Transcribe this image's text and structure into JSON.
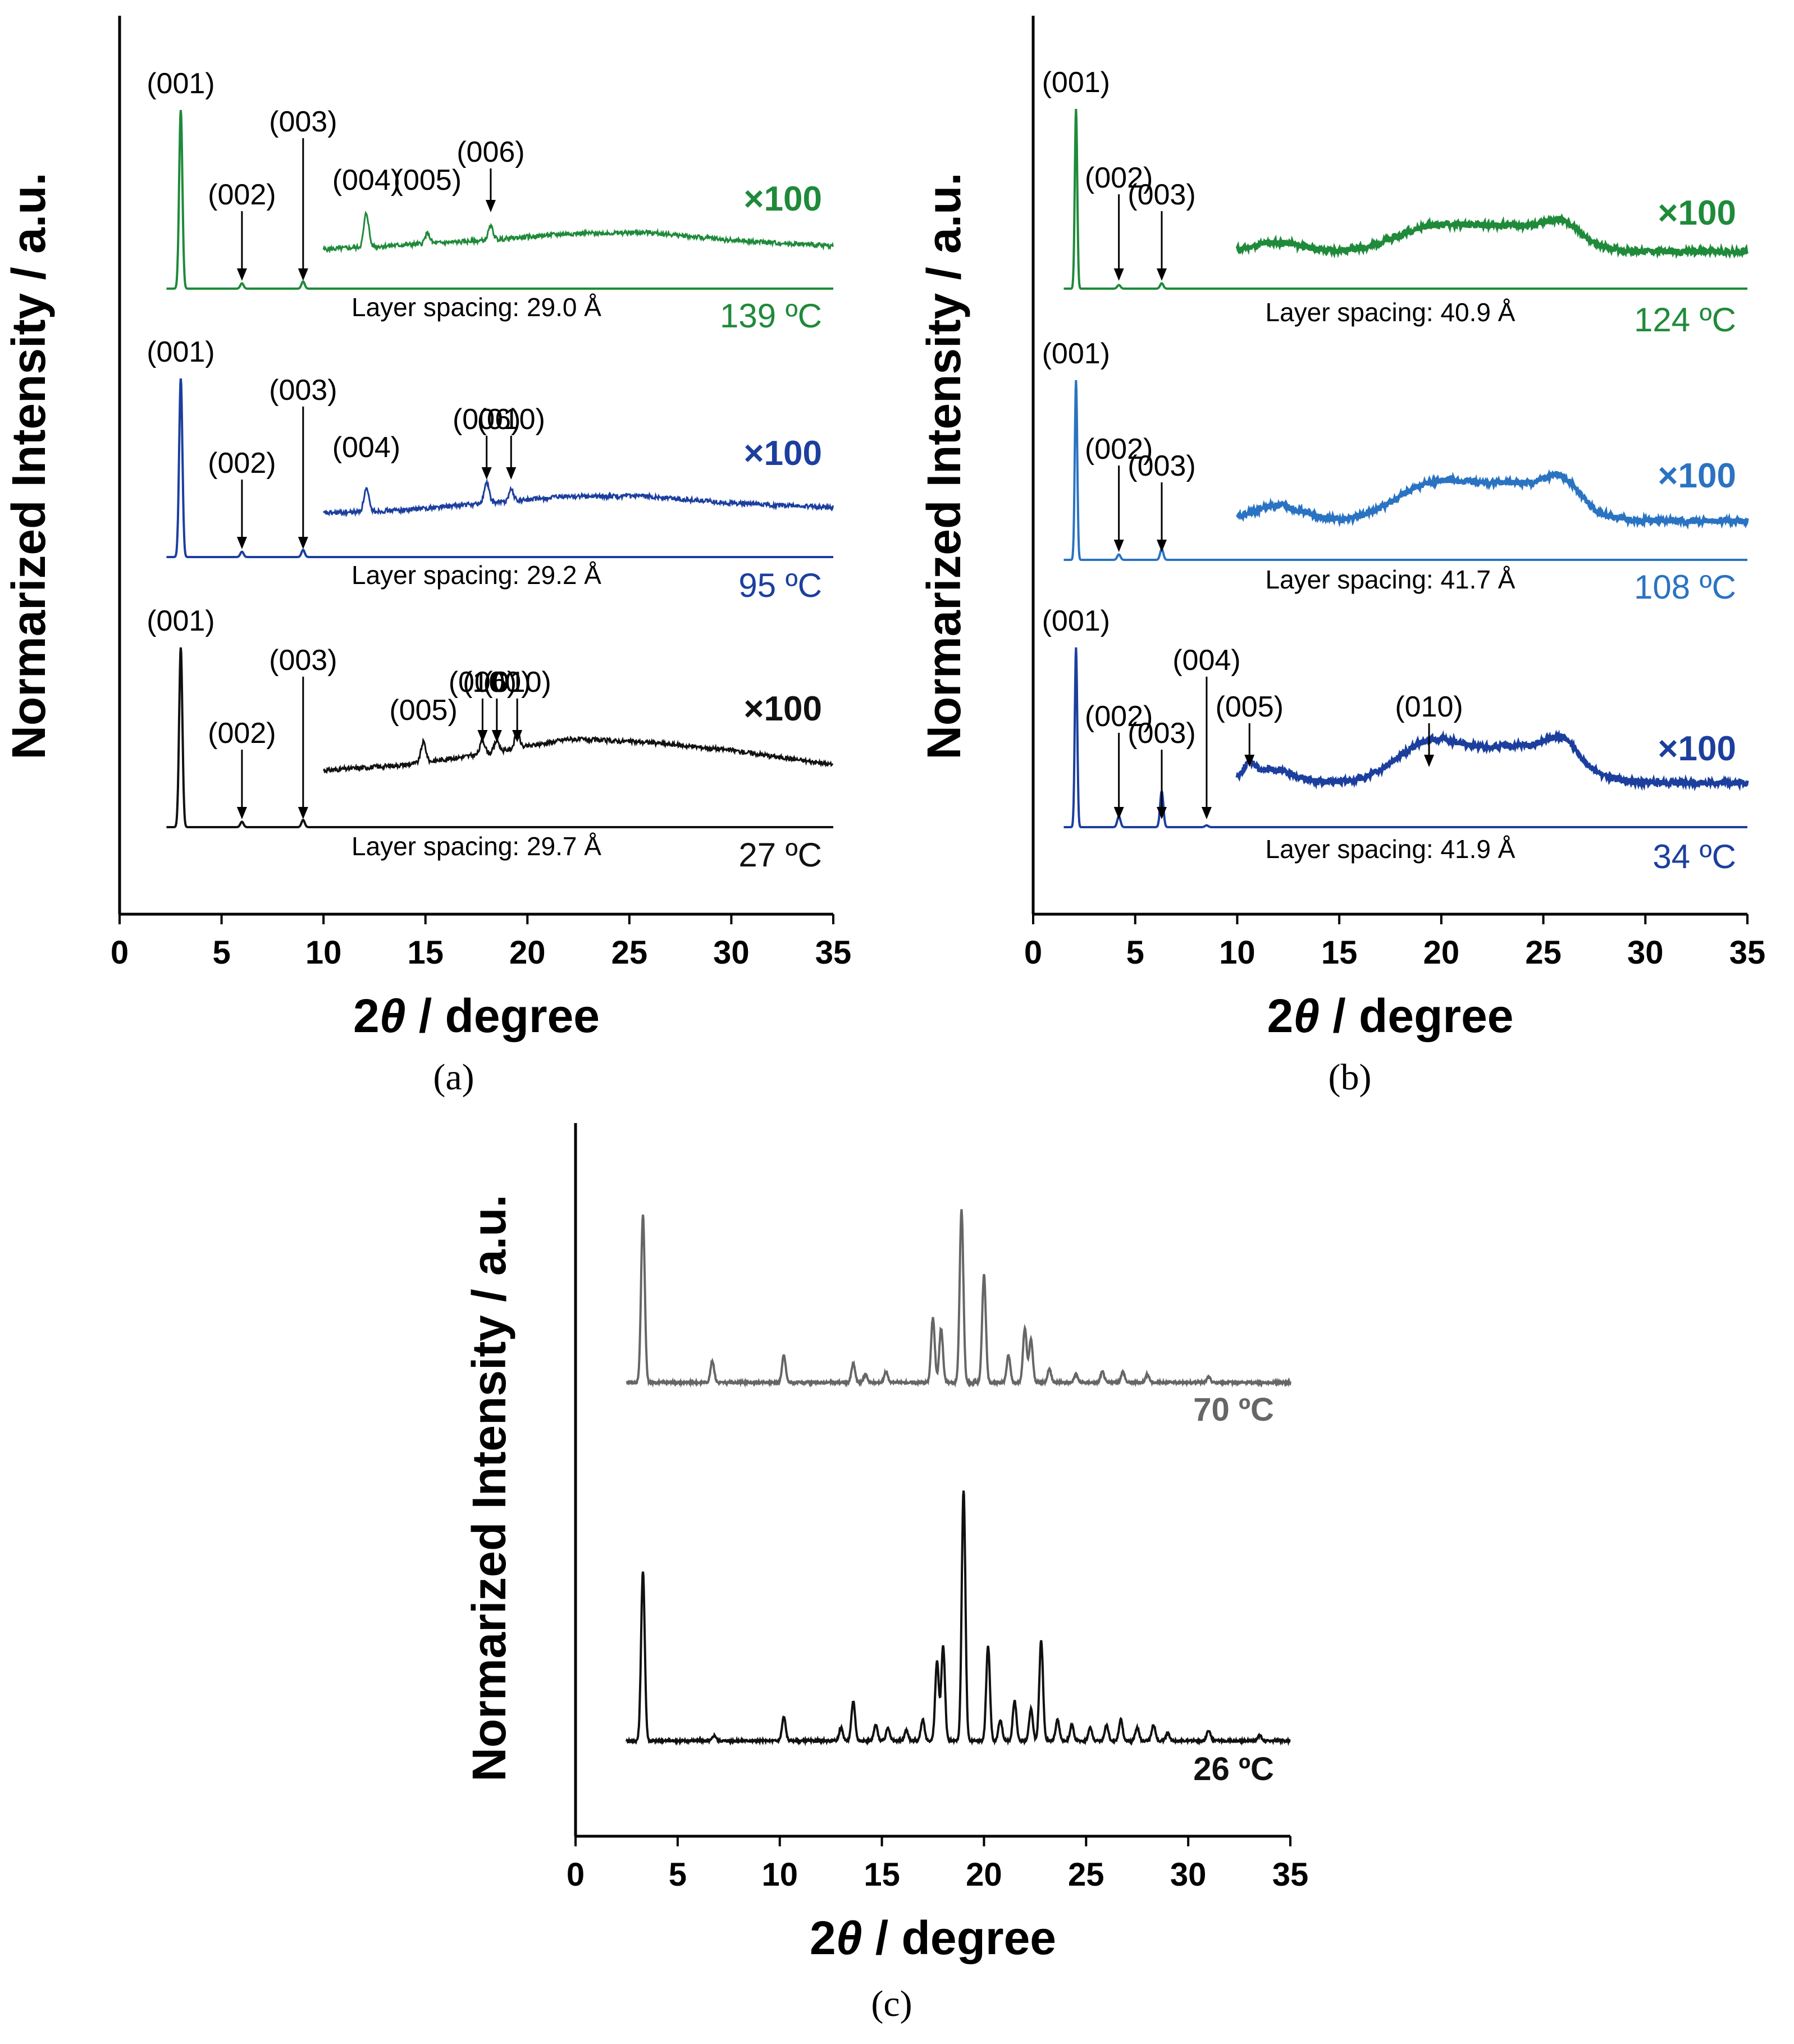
{
  "chart_data": [
    {
      "panel": "a",
      "type": "line",
      "caption": "(a)",
      "xlabel": "2θ / degree",
      "ylabel": "Normarized Intensity / a.u.",
      "xlim": [
        0,
        35
      ],
      "xticks": [
        "0",
        "5",
        "10",
        "15",
        "20",
        "25",
        "30",
        "35"
      ],
      "series": [
        {
          "temperature": "139 ºC",
          "color": "#1f8a3a",
          "spacing": "Layer spacing: 29.0 Å",
          "multiplier": "×100",
          "low": [
            [
              3.0,
              1.0
            ],
            [
              6.0,
              0.03
            ],
            [
              9.0,
              0.04
            ]
          ],
          "high": {
            "baseline": [
              [
                10,
                0.12
              ],
              [
                14,
                0.16
              ],
              [
                18,
                0.2
              ],
              [
                22,
                0.26
              ],
              [
                26,
                0.27
              ],
              [
                30,
                0.2
              ],
              [
                35,
                0.15
              ]
            ],
            "peaks": [
              [
                12.1,
                0.3
              ],
              [
                15.1,
                0.09
              ],
              [
                18.2,
                0.12
              ]
            ]
          },
          "labels": [
            {
              "text": "(001)",
              "x": 3.0,
              "arrow": false
            },
            {
              "text": "(002)",
              "x": 6.0,
              "arrow": true
            },
            {
              "text": "(003)",
              "x": 9.0,
              "arrow": true
            },
            {
              "text": "(004)",
              "x": 12.1,
              "arrow": false
            },
            {
              "text": "(005)",
              "x": 15.1,
              "arrow": false
            },
            {
              "text": "(006)",
              "x": 18.2,
              "arrow": true
            }
          ]
        },
        {
          "temperature": "95 ºC",
          "color": "#1c3f9e",
          "spacing": "Layer spacing: 29.2 Å",
          "multiplier": "×100",
          "low": [
            [
              3.0,
              1.0
            ],
            [
              6.0,
              0.03
            ],
            [
              9.0,
              0.04
            ]
          ],
          "high": {
            "baseline": [
              [
                10,
                0.15
              ],
              [
                14,
                0.18
              ],
              [
                18,
                0.24
              ],
              [
                22,
                0.3
              ],
              [
                26,
                0.3
              ],
              [
                30,
                0.24
              ],
              [
                35,
                0.2
              ]
            ],
            "peaks": [
              [
                12.1,
                0.2
              ],
              [
                18.0,
                0.18
              ],
              [
                19.2,
                0.1
              ]
            ]
          },
          "labels": [
            {
              "text": "(001)",
              "x": 3.0,
              "arrow": false
            },
            {
              "text": "(002)",
              "x": 6.0,
              "arrow": true
            },
            {
              "text": "(003)",
              "x": 9.0,
              "arrow": true
            },
            {
              "text": "(004)",
              "x": 12.1,
              "arrow": false
            },
            {
              "text": "(006)",
              "x": 18.0,
              "arrow": true
            },
            {
              "text": "(010)",
              "x": 19.2,
              "arrow": true
            }
          ]
        },
        {
          "temperature": "27 ºC",
          "color": "#111111",
          "spacing": "Layer spacing: 29.7 Å",
          "multiplier": "×100",
          "low": [
            [
              3.0,
              1.0
            ],
            [
              6.0,
              0.03
            ],
            [
              9.0,
              0.04
            ]
          ],
          "high": {
            "baseline": [
              [
                10,
                0.2
              ],
              [
                14,
                0.25
              ],
              [
                18,
                0.35
              ],
              [
                22,
                0.48
              ],
              [
                26,
                0.45
              ],
              [
                30,
                0.38
              ],
              [
                35,
                0.25
              ]
            ],
            "peaks": [
              [
                14.9,
                0.18
              ],
              [
                17.8,
                0.12
              ],
              [
                18.5,
                0.1
              ],
              [
                19.5,
                0.14
              ]
            ]
          },
          "labels": [
            {
              "text": "(001)",
              "x": 3.0,
              "arrow": false
            },
            {
              "text": "(002)",
              "x": 6.0,
              "arrow": true
            },
            {
              "text": "(003)",
              "x": 9.0,
              "arrow": true
            },
            {
              "text": "(005)",
              "x": 14.9,
              "arrow": false
            },
            {
              "text": "(006)",
              "x": 17.8,
              "arrow": true
            },
            {
              "text": "(100)",
              "x": 18.5,
              "arrow": true
            },
            {
              "text": "(010)",
              "x": 19.5,
              "arrow": true
            }
          ]
        }
      ]
    },
    {
      "panel": "b",
      "type": "line",
      "caption": "(b)",
      "xlabel": "2θ / degree",
      "ylabel": "Normarized Intensity / a.u.",
      "xlim": [
        0,
        35
      ],
      "xticks": [
        "0",
        "5",
        "10",
        "15",
        "20",
        "25",
        "30",
        "35"
      ],
      "series": [
        {
          "temperature": "124 ºC",
          "color": "#1f8a3a",
          "spacing": "Layer spacing: 40.9 Å",
          "multiplier": "×100",
          "low": [
            [
              2.1,
              1.0
            ],
            [
              4.2,
              0.02
            ],
            [
              6.3,
              0.03
            ]
          ],
          "high": {
            "humps": [
              [
                10.0,
                0.16,
                0.0
              ],
              [
                12.0,
                0.24,
                1.2
              ],
              [
                19.5,
                0.36,
                1.8
              ],
              [
                23.8,
                0.38,
                2.2
              ],
              [
                26.0,
                0.3,
                0.8
              ]
            ],
            "baseline": 0.16
          },
          "labels": [
            {
              "text": "(001)",
              "x": 2.1,
              "arrow": false
            },
            {
              "text": "(002)",
              "x": 4.2,
              "arrow": true
            },
            {
              "text": "(003)",
              "x": 6.3,
              "arrow": true
            }
          ]
        },
        {
          "temperature": "108 ºC",
          "color": "#2a73c2",
          "spacing": "Layer spacing: 41.7 Å",
          "multiplier": "×100",
          "low": [
            [
              2.1,
              1.0
            ],
            [
              4.2,
              0.03
            ],
            [
              6.3,
              0.06
            ]
          ],
          "high": {
            "humps": [
              [
                12.0,
                0.3,
                1.2
              ],
              [
                19.5,
                0.46,
                1.8
              ],
              [
                23.8,
                0.48,
                2.2
              ],
              [
                26.0,
                0.36,
                0.8
              ]
            ],
            "baseline": 0.16
          },
          "labels": [
            {
              "text": "(001)",
              "x": 2.1,
              "arrow": false
            },
            {
              "text": "(002)",
              "x": 4.2,
              "arrow": true
            },
            {
              "text": "(003)",
              "x": 6.3,
              "arrow": true
            }
          ]
        },
        {
          "temperature": "34 ºC",
          "color": "#1c3f9e",
          "spacing": "Layer spacing: 41.9 Å",
          "multiplier": "×100",
          "low": [
            [
              2.1,
              1.0
            ],
            [
              4.2,
              0.06
            ],
            [
              6.3,
              0.2
            ],
            [
              8.5,
              0.01
            ]
          ],
          "high": {
            "humps": [
              [
                10.6,
                0.28,
                0.25
              ],
              [
                11.5,
                0.3,
                1.2
              ],
              [
                19.4,
                0.52,
                1.6
              ],
              [
                23.8,
                0.5,
                2.2
              ],
              [
                26.0,
                0.38,
                0.8
              ]
            ],
            "baseline": 0.18
          },
          "labels": [
            {
              "text": "(001)",
              "x": 2.1,
              "arrow": false
            },
            {
              "text": "(002)",
              "x": 4.2,
              "arrow": true
            },
            {
              "text": "(003)",
              "x": 6.3,
              "arrow": true
            },
            {
              "text": "(004)",
              "x": 8.5,
              "arrow": true
            },
            {
              "text": "(005)",
              "x": 10.6,
              "arrow": true
            },
            {
              "text": "(010)",
              "x": 19.4,
              "arrow": true
            }
          ]
        }
      ]
    },
    {
      "panel": "c",
      "type": "line",
      "caption": "(c)",
      "xlabel": "2θ / degree",
      "ylabel": "Normarized Intensity / a.u.",
      "xlim": [
        0,
        35
      ],
      "xticks": [
        "0",
        "5",
        "10",
        "15",
        "20",
        "25",
        "30",
        "35"
      ],
      "series": [
        {
          "temperature": "70 ºC",
          "color": "#666666",
          "peaks": [
            [
              3.3,
              0.62
            ],
            [
              6.7,
              0.08
            ],
            [
              10.2,
              0.1
            ],
            [
              13.6,
              0.07
            ],
            [
              14.2,
              0.03
            ],
            [
              15.2,
              0.04
            ],
            [
              17.5,
              0.24
            ],
            [
              17.9,
              0.2
            ],
            [
              18.9,
              0.64
            ],
            [
              20.0,
              0.4
            ],
            [
              21.2,
              0.1
            ],
            [
              22.0,
              0.2
            ],
            [
              22.3,
              0.16
            ],
            [
              23.2,
              0.05
            ],
            [
              24.5,
              0.03
            ],
            [
              25.8,
              0.04
            ],
            [
              26.8,
              0.04
            ],
            [
              28.0,
              0.03
            ],
            [
              31.0,
              0.02
            ]
          ]
        },
        {
          "temperature": "26 ºC",
          "color": "#111111",
          "peaks": [
            [
              3.3,
              0.64
            ],
            [
              6.8,
              0.02
            ],
            [
              10.2,
              0.09
            ],
            [
              13.0,
              0.05
            ],
            [
              13.6,
              0.15
            ],
            [
              14.7,
              0.06
            ],
            [
              15.3,
              0.05
            ],
            [
              16.2,
              0.04
            ],
            [
              17.0,
              0.08
            ],
            [
              17.7,
              0.3
            ],
            [
              18.0,
              0.36
            ],
            [
              19.0,
              0.95
            ],
            [
              20.2,
              0.36
            ],
            [
              20.8,
              0.08
            ],
            [
              21.5,
              0.15
            ],
            [
              22.3,
              0.12
            ],
            [
              22.8,
              0.38
            ],
            [
              23.6,
              0.08
            ],
            [
              24.3,
              0.06
            ],
            [
              25.2,
              0.05
            ],
            [
              26.0,
              0.06
            ],
            [
              26.7,
              0.08
            ],
            [
              27.5,
              0.05
            ],
            [
              28.3,
              0.06
            ],
            [
              29.0,
              0.03
            ],
            [
              31.0,
              0.04
            ],
            [
              33.5,
              0.02
            ]
          ]
        }
      ]
    }
  ]
}
